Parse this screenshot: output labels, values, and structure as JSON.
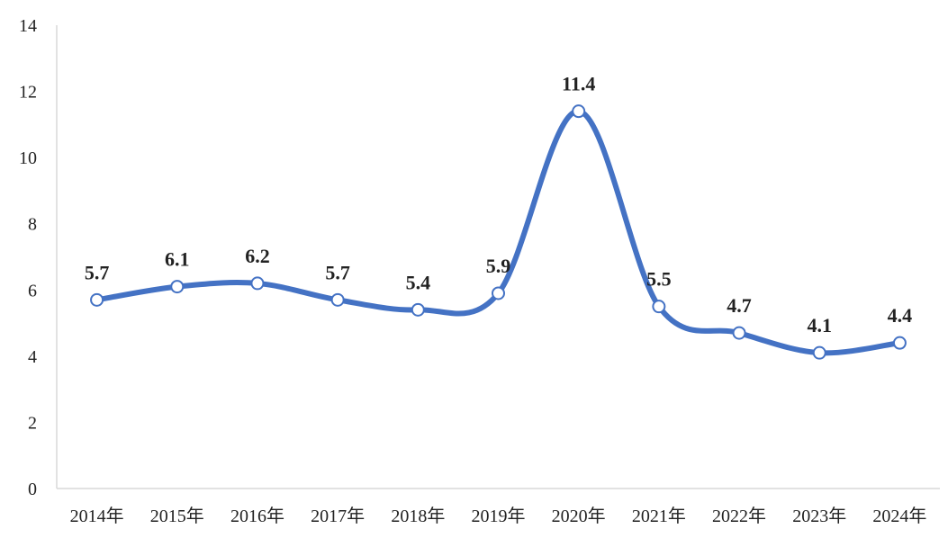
{
  "chart_data": {
    "type": "line",
    "categories": [
      "2014年",
      "2015年",
      "2016年",
      "2017年",
      "2018年",
      "2019年",
      "2020年",
      "2021年",
      "2022年",
      "2023年",
      "2024年"
    ],
    "series": [
      {
        "values": [
          5.7,
          6.1,
          6.2,
          5.7,
          5.4,
          5.9,
          11.4,
          5.5,
          4.7,
          4.1,
          4.4
        ]
      }
    ],
    "data_labels": [
      "5.7",
      "6.1",
      "6.2",
      "5.7",
      "5.4",
      "5.9",
      "11.4",
      "5.5",
      "4.7",
      "4.1",
      "4.4"
    ],
    "y_ticks": [
      "0",
      "2",
      "4",
      "6",
      "8",
      "10",
      "12",
      "14"
    ],
    "ylim": [
      0,
      14
    ],
    "smooth": true,
    "grid": false,
    "colors": {
      "line": "#4472C4",
      "marker_fill": "#ffffff",
      "axis": "#d9d9d9"
    }
  }
}
